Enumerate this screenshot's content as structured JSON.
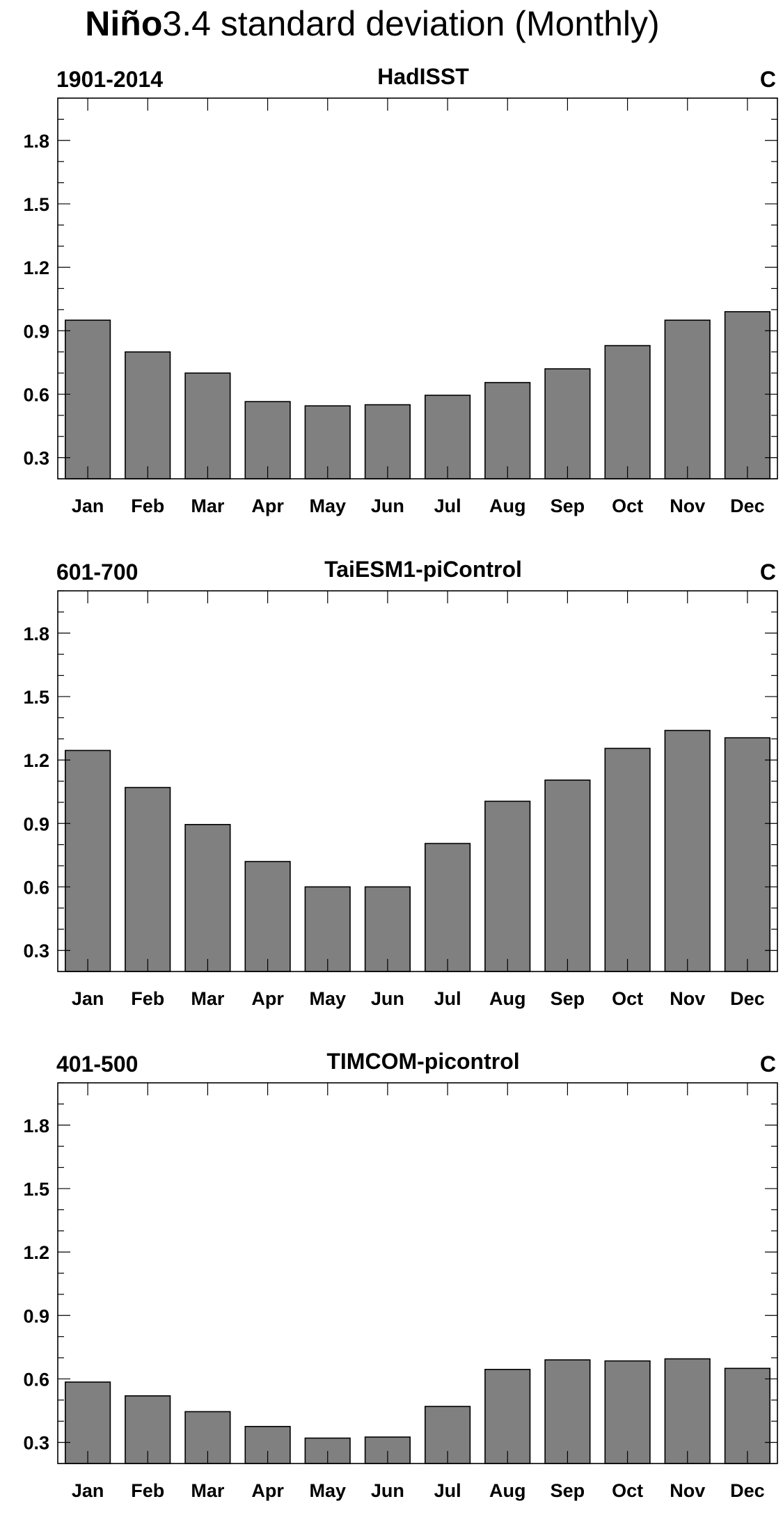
{
  "title": {
    "bold": "Niño",
    "rest": "3.4 standard deviation (Monthly)"
  },
  "bar_color": "#808080",
  "chart_data": [
    {
      "type": "bar",
      "title": "HadISST",
      "left_label": "1901-2014",
      "right_label": "C",
      "categories": [
        "Jan",
        "Feb",
        "Mar",
        "Apr",
        "May",
        "Jun",
        "Jul",
        "Aug",
        "Sep",
        "Oct",
        "Nov",
        "Dec"
      ],
      "values": [
        0.95,
        0.8,
        0.7,
        0.565,
        0.545,
        0.55,
        0.595,
        0.655,
        0.72,
        0.83,
        0.95,
        0.99
      ],
      "ylim": [
        0.2,
        2.0
      ],
      "yticks": [
        0.3,
        0.6,
        0.9,
        1.2,
        1.5,
        1.8
      ],
      "ytick_labels": [
        "0.3",
        "0.6",
        "0.9",
        "1.2",
        "1.5",
        "1.8"
      ]
    },
    {
      "type": "bar",
      "title": "TaiESM1-piControl",
      "left_label": "601-700",
      "right_label": "C",
      "categories": [
        "Jan",
        "Feb",
        "Mar",
        "Apr",
        "May",
        "Jun",
        "Jul",
        "Aug",
        "Sep",
        "Oct",
        "Nov",
        "Dec"
      ],
      "values": [
        1.245,
        1.07,
        0.895,
        0.72,
        0.6,
        0.6,
        0.805,
        1.005,
        1.105,
        1.255,
        1.34,
        1.305
      ],
      "ylim": [
        0.2,
        2.0
      ],
      "yticks": [
        0.3,
        0.6,
        0.9,
        1.2,
        1.5,
        1.8
      ],
      "ytick_labels": [
        "0.3",
        "0.6",
        "0.9",
        "1.2",
        "1.5",
        "1.8"
      ]
    },
    {
      "type": "bar",
      "title": "TIMCOM-picontrol",
      "left_label": "401-500",
      "right_label": "C",
      "categories": [
        "Jan",
        "Feb",
        "Mar",
        "Apr",
        "May",
        "Jun",
        "Jul",
        "Aug",
        "Sep",
        "Oct",
        "Nov",
        "Dec"
      ],
      "values": [
        0.585,
        0.52,
        0.445,
        0.375,
        0.32,
        0.325,
        0.47,
        0.645,
        0.69,
        0.685,
        0.695,
        0.65
      ],
      "ylim": [
        0.2,
        2.0
      ],
      "yticks": [
        0.3,
        0.6,
        0.9,
        1.2,
        1.5,
        1.8
      ],
      "ytick_labels": [
        "0.3",
        "0.6",
        "0.9",
        "1.2",
        "1.5",
        "1.8"
      ]
    }
  ]
}
